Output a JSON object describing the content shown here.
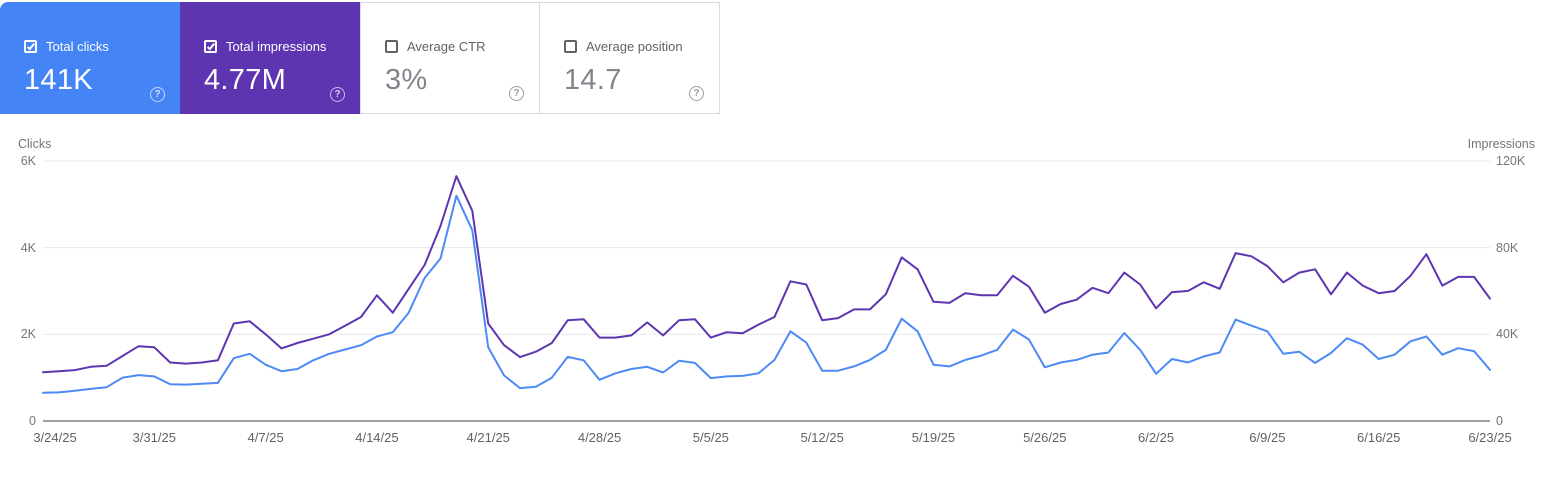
{
  "cards": [
    {
      "label": "Total clicks",
      "value": "141K",
      "checked": true,
      "bg": "#4584f4"
    },
    {
      "label": "Total impressions",
      "value": "4.77M",
      "checked": true,
      "bg": "#5e35b1"
    },
    {
      "label": "Average CTR",
      "value": "3%",
      "checked": false,
      "bg": "#ffffff"
    },
    {
      "label": "Average position",
      "value": "14.7",
      "checked": false,
      "bg": "#ffffff"
    }
  ],
  "help_icon_symbol": "?",
  "chart_data": {
    "type": "line",
    "frequency": "daily",
    "num_points": 92,
    "date_range": [
      "3/24/25",
      "6/23/25"
    ],
    "x_tick_labels": [
      "3/24/25",
      "3/31/25",
      "4/7/25",
      "4/14/25",
      "4/21/25",
      "4/28/25",
      "5/5/25",
      "5/12/25",
      "5/19/25",
      "5/26/25",
      "6/2/25",
      "6/9/25",
      "6/16/25",
      "6/23/25"
    ],
    "x_tick_interval_days": 7,
    "left_axis": {
      "label": "Clicks",
      "ticks": [
        "6K",
        "4K",
        "2K",
        "0"
      ],
      "max": 6000,
      "min": 0
    },
    "right_axis": {
      "label": "Impressions",
      "ticks": [
        "120K",
        "80K",
        "40K",
        "0"
      ],
      "max": 120000,
      "min": 0
    },
    "grid": true,
    "legend_position": "none",
    "series": [
      {
        "name": "Clicks",
        "axis": "left",
        "color": "#4d8af5",
        "values": [
          650,
          660,
          700,
          740,
          780,
          1000,
          1060,
          1030,
          850,
          840,
          860,
          880,
          1450,
          1550,
          1300,
          1150,
          1200,
          1400,
          1550,
          1650,
          1750,
          1950,
          2050,
          2500,
          3300,
          3750,
          5200,
          4400,
          1700,
          1050,
          760,
          790,
          1000,
          1480,
          1400,
          950,
          1100,
          1200,
          1250,
          1120,
          1390,
          1340,
          990,
          1030,
          1040,
          1100,
          1410,
          2070,
          1810,
          1160,
          1160,
          1260,
          1410,
          1640,
          2360,
          2070,
          1300,
          1260,
          1410,
          1510,
          1640,
          2110,
          1880,
          1240,
          1350,
          1410,
          1530,
          1580,
          2030,
          1640,
          1090,
          1430,
          1350,
          1490,
          1580,
          2340,
          2200,
          2070,
          1550,
          1600,
          1340,
          1570,
          1910,
          1760,
          1430,
          1530,
          1840,
          1950,
          1530,
          1680,
          1610,
          1180
        ]
      },
      {
        "name": "Impressions",
        "axis": "right",
        "color": "#5e35b1",
        "values": [
          22500,
          23000,
          23500,
          25000,
          25500,
          30000,
          34500,
          34000,
          27000,
          26500,
          27000,
          28000,
          45000,
          46000,
          40000,
          33500,
          36000,
          38000,
          40000,
          44000,
          48000,
          58000,
          50000,
          61000,
          72000,
          90000,
          113000,
          97000,
          45000,
          35000,
          29500,
          32000,
          36000,
          46500,
          47000,
          38500,
          38500,
          39500,
          45500,
          39500,
          46500,
          47000,
          38500,
          41000,
          40500,
          44500,
          48000,
          64500,
          63000,
          46500,
          47500,
          51500,
          51500,
          58500,
          75500,
          70000,
          55000,
          54500,
          59000,
          58000,
          58000,
          67000,
          62000,
          50000,
          54000,
          56000,
          61500,
          59000,
          68500,
          63000,
          52000,
          59500,
          60000,
          64000,
          61000,
          77500,
          76000,
          71500,
          64000,
          68500,
          70000,
          58500,
          68500,
          62500,
          59000,
          60000,
          67000,
          77000,
          62500,
          66500,
          66500,
          56500
        ]
      }
    ]
  }
}
